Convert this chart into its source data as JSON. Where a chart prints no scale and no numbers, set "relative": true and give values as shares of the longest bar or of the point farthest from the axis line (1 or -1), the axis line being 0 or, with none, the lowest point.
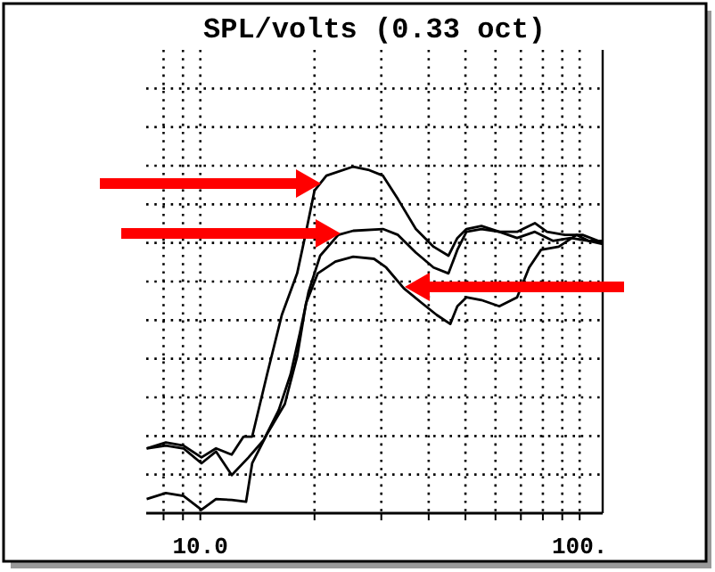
{
  "chart_data": {
    "type": "line",
    "title": "SPL/volts (0.33 oct)",
    "relative": true,
    "log": "x",
    "grid": true,
    "line_style": "solid",
    "marker": "none",
    "xlim": [
      7.2,
      115
    ],
    "xticks": [
      {
        "value": 8,
        "label": null
      },
      {
        "value": 9,
        "label": null
      },
      {
        "value": 10,
        "label": "10.0"
      },
      {
        "value": 20,
        "label": null
      },
      {
        "value": 30,
        "label": null
      },
      {
        "value": 40,
        "label": null
      },
      {
        "value": 50,
        "label": null
      },
      {
        "value": 60,
        "label": null
      },
      {
        "value": 70,
        "label": null
      },
      {
        "value": 80,
        "label": null
      },
      {
        "value": 90,
        "label": null
      },
      {
        "value": 100,
        "label": "100."
      }
    ],
    "series": [
      {
        "color": "#000000",
        "x": [
          7.22,
          8.11,
          9.03,
          10.07,
          11.0,
          12.1,
          13.0,
          13.7,
          15.0,
          16.4,
          18.0,
          19.0,
          20.0,
          21.5,
          25.3,
          27.7,
          30.3,
          33.2,
          37.0,
          41.2,
          45.1,
          47.6,
          50.3,
          55.1,
          61.4,
          68.4,
          76.2,
          82.0,
          91.4,
          101.8,
          115
        ],
        "values": [
          0.187,
          0.204,
          0.195,
          0.161,
          0.187,
          0.169,
          0.221,
          0.221,
          0.401,
          0.572,
          0.692,
          0.812,
          0.931,
          0.974,
          1,
          0.991,
          0.974,
          0.906,
          0.82,
          0.769,
          0.743,
          0.794,
          0.82,
          0.829,
          0.812,
          0.812,
          0.837,
          0.812,
          0.803,
          0.803,
          0.781
        ]
      },
      {
        "color": "#000000",
        "x": [
          7.22,
          8.11,
          9.03,
          10.07,
          11.0,
          12.1,
          13.4,
          14.7,
          16.1,
          17.3,
          18.3,
          19.3,
          20.7,
          23.1,
          25.3,
          30.3,
          33.2,
          37.0,
          41.2,
          45.1,
          47.6,
          50.3,
          55.1,
          61.4,
          68.4,
          76.2,
          85.0,
          94.7,
          105.6,
          115
        ],
        "values": [
          0.187,
          0.195,
          0.187,
          0.144,
          0.178,
          0.11,
          0.161,
          0.212,
          0.298,
          0.401,
          0.52,
          0.64,
          0.743,
          0.803,
          0.815,
          0.82,
          0.803,
          0.752,
          0.709,
          0.692,
          0.76,
          0.812,
          0.82,
          0.812,
          0.794,
          0.812,
          0.786,
          0.794,
          0.786,
          0.786
        ]
      },
      {
        "color": "#000000",
        "x": [
          7.22,
          8.11,
          9.03,
          10.07,
          11.0,
          12.1,
          13.2,
          13.7,
          15.0,
          16.7,
          18.0,
          19.0,
          20.4,
          22.7,
          25.3,
          28.7,
          30.9,
          34.4,
          38.4,
          42.0,
          45.6,
          47.6,
          50.3,
          55.1,
          61.4,
          68.4,
          73.6,
          79.1,
          88.1,
          98.2,
          105.6,
          115
        ],
        "values": [
          0.041,
          0.058,
          0.05,
          0.01,
          0.041,
          0.038,
          0.033,
          0.144,
          0.229,
          0.315,
          0.452,
          0.606,
          0.692,
          0.726,
          0.74,
          0.734,
          0.709,
          0.649,
          0.606,
          0.572,
          0.546,
          0.597,
          0.623,
          0.615,
          0.597,
          0.623,
          0.709,
          0.76,
          0.769,
          0.803,
          0.786,
          0.777
        ]
      }
    ]
  }
}
